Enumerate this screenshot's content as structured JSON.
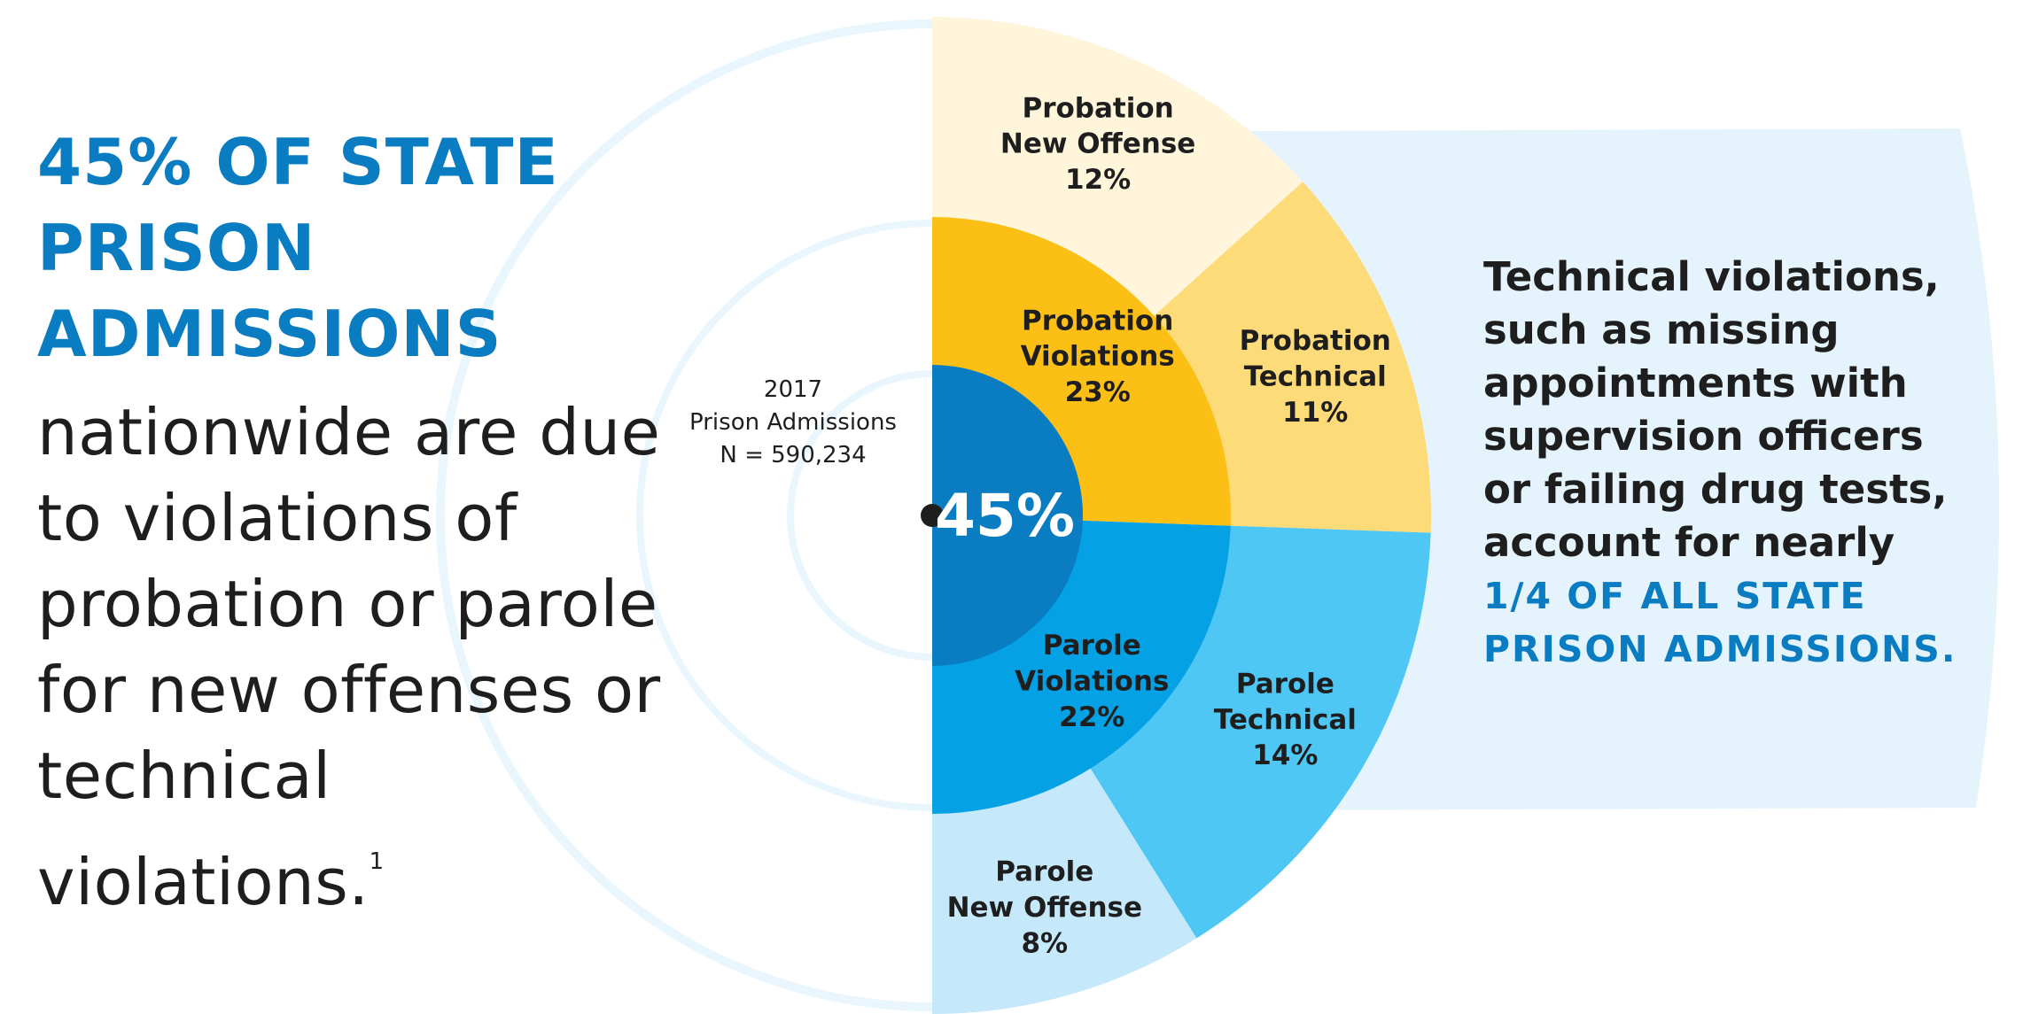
{
  "headline": "45% OF STATE PRISON ADMISSIONS",
  "body_text": "nationwide are due\nto violations of\nprobation or parole\nfor new offenses or\ntechnical violations.",
  "body_footnote": "1",
  "note_text": "Technical violations,\nsuch as missing\nappointments with\nsupervision officers\nor failing drug tests,\naccount for nearly",
  "note_highlight": "1/4 OF ALL STATE\nPRISON ADMISSIONS.",
  "colors": {
    "blue_text": "#0a7cc1",
    "dark_text": "#1e1e1e",
    "light_panel": "#e5f4fc",
    "ring_stroke": "#e9f6fd",
    "center_blue": "#0a7cc1"
  },
  "chart_data": {
    "type": "pie",
    "subtype": "nested-sunburst",
    "center_label": "45%",
    "center_value": 45,
    "annotation": {
      "year": "2017",
      "label": "Prison Admissions",
      "n": "N = 590,234"
    },
    "inner_ring": [
      {
        "key": "probation_violations",
        "name_lines": [
          "Probation",
          "Violations"
        ],
        "label": "23%",
        "value": 23,
        "color": "#fbbf15"
      },
      {
        "key": "parole_violations",
        "name_lines": [
          "Parole",
          "Violations"
        ],
        "label": "22%",
        "value": 22,
        "color": "#04a1e5"
      }
    ],
    "outer_ring": [
      {
        "key": "probation_new_offense",
        "name_lines": [
          "Probation",
          "New Offense"
        ],
        "label": "12%",
        "value": 12,
        "group": "probation",
        "color": "#fff5db"
      },
      {
        "key": "probation_technical",
        "name_lines": [
          "Probation",
          "Technical"
        ],
        "label": "11%",
        "value": 11,
        "group": "probation",
        "color": "#fddb78"
      },
      {
        "key": "parole_technical",
        "name_lines": [
          "Parole",
          "Technical"
        ],
        "label": "14%",
        "value": 14,
        "group": "parole",
        "color": "#4fc7f5"
      },
      {
        "key": "parole_new_offense",
        "name_lines": [
          "Parole",
          "New Offense"
        ],
        "label": "8%",
        "value": 8,
        "group": "parole",
        "color": "#c5e8fb"
      }
    ]
  }
}
